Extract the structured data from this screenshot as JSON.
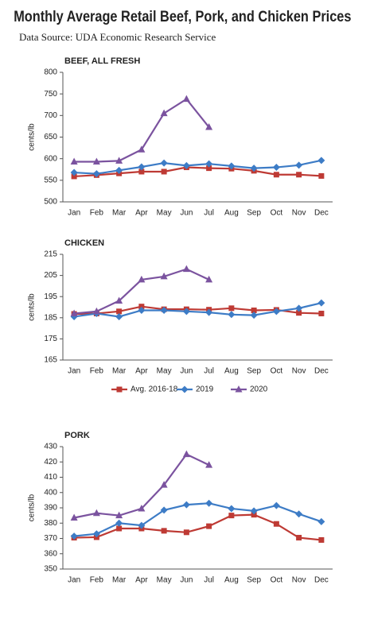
{
  "title": "Monthly Average Retail Beef, Pork, and Chicken Prices",
  "subtitle": "Data Source: UDA Economic Research Service",
  "chart_data": [
    {
      "type": "line",
      "title": "BEEF, ALL FRESH",
      "y_label": "cents/lb",
      "categories": [
        "Jan",
        "Feb",
        "Mar",
        "Apr",
        "May",
        "Jun",
        "Jul",
        "Aug",
        "Sep",
        "Oct",
        "Nov",
        "Dec"
      ],
      "ylim": [
        500,
        800
      ],
      "yticks": [
        500,
        550,
        600,
        650,
        700,
        750,
        800
      ],
      "series": [
        {
          "color": "#be3a34",
          "values": [
            559,
            562,
            566,
            570,
            570,
            580,
            578,
            577,
            572,
            563,
            563,
            560
          ]
        },
        {
          "color": "#3d7cc6",
          "values": [
            568,
            565,
            573,
            581,
            590,
            584,
            588,
            583,
            578,
            580,
            585,
            596
          ]
        },
        {
          "color": "#7b539f",
          "values": [
            593,
            593,
            595,
            621,
            705,
            738,
            673,
            null,
            null,
            null,
            null,
            null
          ]
        }
      ]
    },
    {
      "type": "line",
      "title": "CHICKEN",
      "y_label": "cents/lb",
      "categories": [
        "Jan",
        "Feb",
        "Mar",
        "Apr",
        "May",
        "Jun",
        "Jul",
        "Aug",
        "Sep",
        "Oct",
        "Nov",
        "Dec"
      ],
      "ylim": [
        165,
        215
      ],
      "yticks": [
        165,
        175,
        185,
        195,
        205,
        215
      ],
      "series": [
        {
          "name": "Avg. 2016-18",
          "color": "#be3a34",
          "values": [
            186.8,
            187,
            188,
            190.3,
            189,
            189,
            188.8,
            189.5,
            188.5,
            188.7,
            187.3,
            187
          ]
        },
        {
          "name": "2019",
          "color": "#3d7cc6",
          "values": [
            185.5,
            187,
            185.5,
            188.5,
            188.5,
            188,
            187.5,
            186.5,
            186.2,
            188,
            189.5,
            192
          ]
        },
        {
          "name": "2020",
          "color": "#7b539f",
          "values": [
            187,
            188,
            193,
            203,
            204.5,
            208,
            203,
            null,
            null,
            null,
            null,
            null
          ]
        }
      ]
    },
    {
      "type": "line",
      "title": "PORK",
      "y_label": "cents/lb",
      "categories": [
        "Jan",
        "Feb",
        "Mar",
        "Apr",
        "May",
        "Jun",
        "Jul",
        "Aug",
        "Sep",
        "Oct",
        "Nov",
        "Dec"
      ],
      "ylim": [
        350,
        430
      ],
      "yticks": [
        350,
        360,
        370,
        380,
        390,
        400,
        410,
        420,
        430
      ],
      "series": [
        {
          "color": "#be3a34",
          "values": [
            370.5,
            370.8,
            376.5,
            376.5,
            375,
            374,
            378,
            385,
            385.5,
            379.5,
            370.5,
            369
          ]
        },
        {
          "color": "#3d7cc6",
          "values": [
            371.5,
            373,
            380,
            378.5,
            388.5,
            392,
            393,
            389.5,
            388,
            391.5,
            386,
            381
          ]
        },
        {
          "color": "#7b539f",
          "values": [
            383.5,
            386.5,
            385,
            389.5,
            405,
            425,
            418,
            null,
            null,
            null,
            null,
            null
          ]
        }
      ]
    }
  ]
}
